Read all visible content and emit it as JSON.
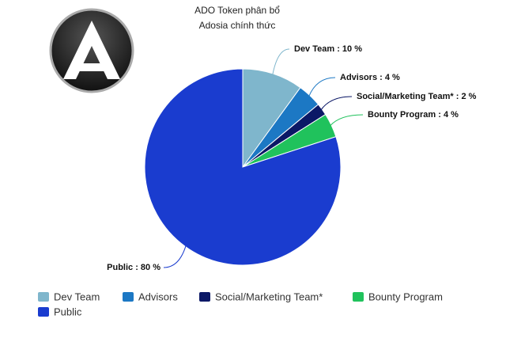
{
  "chart_data": {
    "type": "pie",
    "title": "ADO Token phân bổ",
    "subtitle": "Adosia chính thức",
    "categories": [
      "Dev Team",
      "Advisors",
      "Social/Marketing Team*",
      "Bounty Program",
      "Public"
    ],
    "values": [
      10,
      4,
      2,
      4,
      80
    ],
    "value_labels": [
      "Dev Team : 10 %",
      "Advisors : 4 %",
      "Social/Marketing Team* : 2 %",
      "Bounty Program : 4 %",
      "Public : 80 %"
    ],
    "colors": [
      "#7fb6cc",
      "#1c78c4",
      "#0b1866",
      "#20c25c",
      "#1a3ccf"
    ],
    "legend": "bottom"
  }
}
